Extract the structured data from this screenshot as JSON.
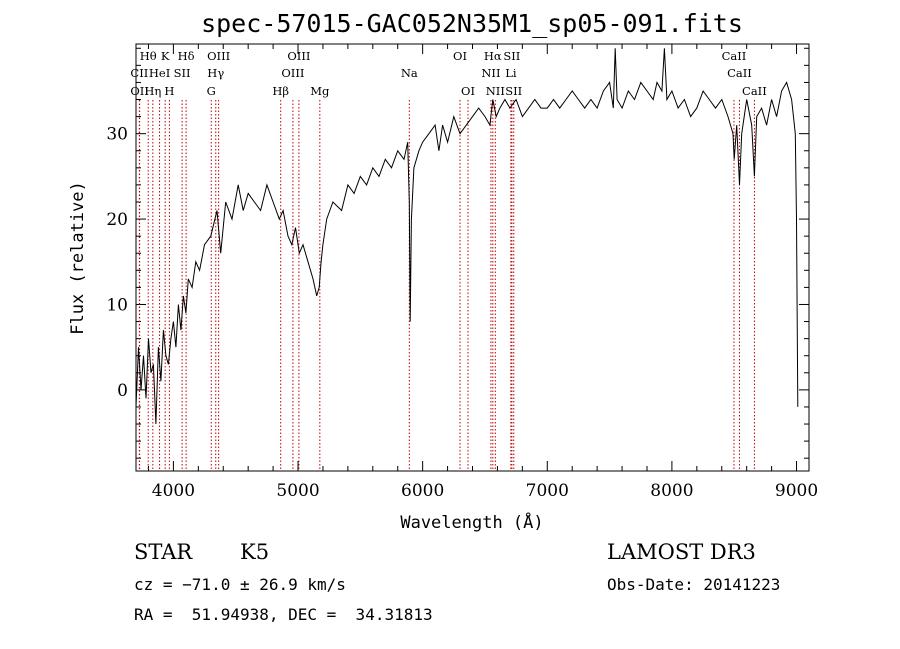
{
  "chart_data": {
    "type": "line",
    "title": "spec-57015-GAC052N35M1_sp05-091.fits",
    "xlabel": "Wavelength (Å)",
    "ylabel": "Flux (relative)",
    "xlim": [
      3700,
      9100
    ],
    "ylim": [
      -9.5,
      40.5
    ],
    "xticks": [
      4000,
      5000,
      6000,
      7000,
      8000,
      9000
    ],
    "yticks": [
      0,
      10,
      20,
      30
    ],
    "minor_x_step": 200,
    "minor_y_step": 2,
    "series": [
      {
        "name": "flux",
        "x": [
          3700,
          3720,
          3740,
          3760,
          3780,
          3800,
          3820,
          3840,
          3860,
          3880,
          3900,
          3920,
          3940,
          3960,
          3980,
          4000,
          4020,
          4040,
          4060,
          4080,
          4100,
          4120,
          4150,
          4180,
          4210,
          4250,
          4300,
          4350,
          4380,
          4420,
          4470,
          4520,
          4560,
          4600,
          4650,
          4700,
          4750,
          4800,
          4850,
          4880,
          4920,
          4950,
          4980,
          5010,
          5040,
          5080,
          5120,
          5150,
          5170,
          5185,
          5200,
          5230,
          5280,
          5350,
          5400,
          5450,
          5500,
          5550,
          5600,
          5650,
          5700,
          5750,
          5800,
          5850,
          5880,
          5893,
          5900,
          5910,
          5930,
          5970,
          6000,
          6050,
          6100,
          6130,
          6160,
          6200,
          6250,
          6300,
          6350,
          6400,
          6450,
          6500,
          6540,
          6563,
          6590,
          6620,
          6660,
          6700,
          6750,
          6800,
          6850,
          6900,
          6950,
          7000,
          7050,
          7100,
          7150,
          7200,
          7250,
          7300,
          7350,
          7400,
          7450,
          7500,
          7530,
          7545,
          7560,
          7600,
          7650,
          7700,
          7750,
          7800,
          7850,
          7880,
          7920,
          7940,
          7960,
          8000,
          8050,
          8100,
          8150,
          8200,
          8250,
          8300,
          8350,
          8400,
          8450,
          8490,
          8500,
          8520,
          8542,
          8560,
          8600,
          8640,
          8662,
          8680,
          8720,
          8760,
          8800,
          8840,
          8880,
          8920,
          8960,
          8990,
          9000,
          9010
        ],
        "y": [
          -2,
          5,
          0,
          4,
          -1,
          6,
          2,
          3,
          -4,
          5,
          1,
          7,
          4,
          3,
          6,
          8,
          5,
          10,
          7,
          11,
          9,
          13,
          12,
          15,
          14,
          17,
          18,
          21,
          16,
          22,
          20,
          24,
          21,
          23,
          22,
          21,
          24,
          22,
          20,
          21,
          18,
          17,
          19,
          16,
          17,
          15,
          13,
          11,
          12,
          15,
          17,
          20,
          22,
          21,
          24,
          23,
          25,
          24,
          26,
          25,
          27,
          26,
          28,
          27,
          29,
          22,
          8,
          20,
          26,
          28,
          29,
          30,
          31,
          28,
          31,
          29,
          32,
          30,
          31,
          32,
          33,
          32,
          31,
          34,
          32,
          33,
          34,
          33,
          34,
          32,
          33,
          34,
          33,
          33,
          34,
          33,
          34,
          35,
          34,
          33,
          34,
          33,
          35,
          36,
          33,
          40,
          34,
          33,
          35,
          34,
          36,
          35,
          34,
          36,
          35,
          40,
          34,
          35,
          33,
          34,
          32,
          33,
          35,
          34,
          33,
          34,
          32,
          30,
          27,
          31,
          24,
          30,
          34,
          31,
          25,
          32,
          33,
          31,
          34,
          32,
          35,
          36,
          34,
          30,
          20,
          -2
        ]
      }
    ],
    "emission_lines": [
      {
        "label": "Hθ",
        "x": 3798,
        "row": 0
      },
      {
        "label": "CII",
        "x": 3727,
        "row": 1
      },
      {
        "label": "OII",
        "x": 3729,
        "row": 2
      },
      {
        "label": "K",
        "x": 3934,
        "row": 0
      },
      {
        "label": "Hη",
        "x": 3835,
        "row": 2
      },
      {
        "label": "HeI",
        "x": 3889,
        "row": 1
      },
      {
        "label": "H",
        "x": 3968,
        "row": 2
      },
      {
        "label": "SII",
        "x": 4070,
        "row": 1
      },
      {
        "label": "Hδ",
        "x": 4102,
        "row": 0
      },
      {
        "label": "OIII",
        "x": 4363,
        "row": 0
      },
      {
        "label": "Hγ",
        "x": 4340,
        "row": 1
      },
      {
        "label": "G",
        "x": 4304,
        "row": 2
      },
      {
        "label": "Hβ",
        "x": 4861,
        "row": 2
      },
      {
        "label": "OIII",
        "x": 5007,
        "row": 0
      },
      {
        "label": "OIII",
        "x": 4959,
        "row": 1
      },
      {
        "label": "Mg",
        "x": 5175,
        "row": 2
      },
      {
        "label": "Na",
        "x": 5893,
        "row": 1
      },
      {
        "label": "OI",
        "x": 6300,
        "row": 0
      },
      {
        "label": "OI",
        "x": 6364,
        "row": 2
      },
      {
        "label": "Hα",
        "x": 6563,
        "row": 0
      },
      {
        "label": "SII",
        "x": 6716,
        "row": 0
      },
      {
        "label": "NII",
        "x": 6548,
        "row": 1
      },
      {
        "label": "Li",
        "x": 6708,
        "row": 1
      },
      {
        "label": "NII",
        "x": 6583,
        "row": 2
      },
      {
        "label": "SII",
        "x": 6731,
        "row": 2
      },
      {
        "label": "CaII",
        "x": 8498,
        "row": 0
      },
      {
        "label": "CaII",
        "x": 8542,
        "row": 1
      },
      {
        "label": "CaII",
        "x": 8662,
        "row": 2
      }
    ]
  },
  "info": {
    "class": "STAR",
    "subclass": "K5",
    "survey": "LAMOST DR3",
    "cz": "cz = −71.0 ± 26.9 km/s",
    "obs_date": "Obs-Date: 20141223",
    "coords": "RA =  51.94938, DEC =  34.31813"
  },
  "colors": {
    "axis": "#000000",
    "line_marker": "#c00000",
    "spectrum": "#000000"
  }
}
